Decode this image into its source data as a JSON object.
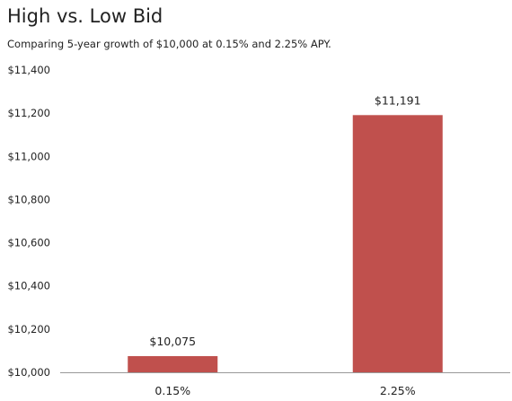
{
  "chart_data": {
    "type": "bar",
    "title": "High vs. Low Bid",
    "subtitle": "Comparing 5-year growth of $10,000 at 0.15% and 2.25% APY.",
    "categories": [
      "0.15%",
      "2.25%"
    ],
    "values": [
      10075,
      11191
    ],
    "data_labels": [
      "$10,075",
      "$11,191"
    ],
    "ylim": [
      10000,
      11400
    ],
    "yticks": [
      10000,
      10200,
      10400,
      10600,
      10800,
      11000,
      11200,
      11400
    ],
    "ytick_labels": [
      "$10,000",
      "$10,200",
      "$10,400",
      "$10,600",
      "$10,800",
      "$11,000",
      "$11,200",
      "$11,400"
    ],
    "xlabel": "",
    "ylabel": "",
    "grid": false,
    "legend": "none",
    "bar_color": "#c0504d",
    "axis_color": "#999999"
  }
}
